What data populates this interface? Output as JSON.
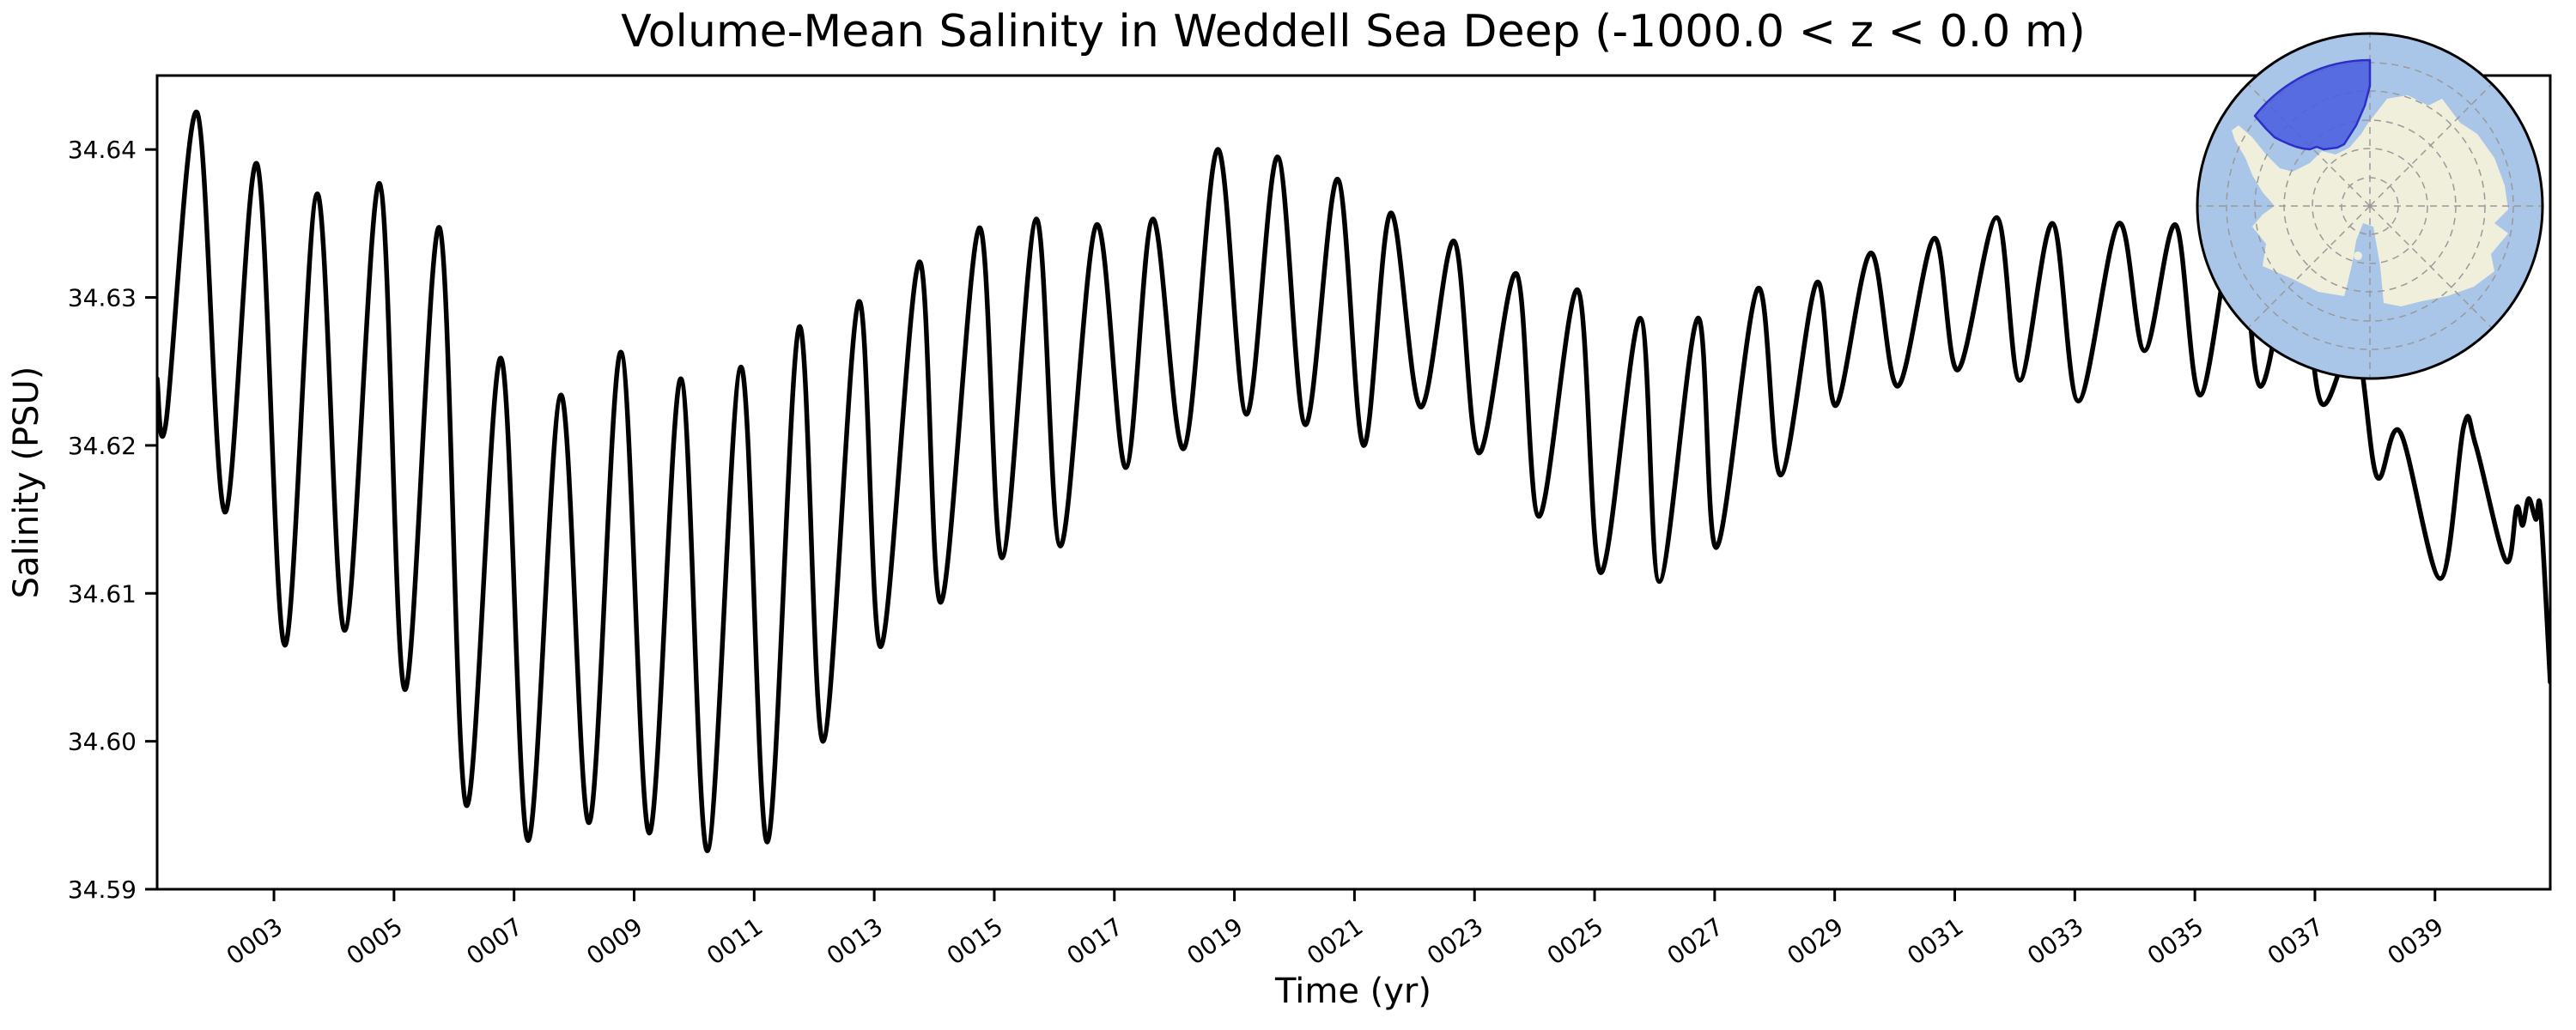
{
  "figure": {
    "title": "Volume-Mean Salinity in Weddell Sea Deep (-1000.0 < z < 0.0 m)",
    "background_color": "#ffffff",
    "frame_color": "#000000"
  },
  "chart_data": {
    "type": "line",
    "title": "Volume-Mean Salinity in Weddell Sea Deep (-1000.0 < z < 0.0 m)",
    "xlabel": "Time (yr)",
    "ylabel": "Salinity (PSU)",
    "xlim": [
      1.054,
      40.92
    ],
    "ylim": [
      34.59,
      34.645
    ],
    "grid": false,
    "legend": "none",
    "line_color": "#000000",
    "line_width": 5.5,
    "x_tick_years": [
      3,
      5,
      7,
      9,
      11,
      13,
      15,
      17,
      19,
      21,
      23,
      25,
      27,
      29,
      31,
      33,
      35,
      37,
      39
    ],
    "x_tick_labels": [
      "0003",
      "0005",
      "0007",
      "0009",
      "0011",
      "0013",
      "0015",
      "0017",
      "0019",
      "0021",
      "0023",
      "0025",
      "0027",
      "0029",
      "0031",
      "0033",
      "0035",
      "0037",
      "0039"
    ],
    "x_tick_rotation_deg": 35,
    "y_tick_values": [
      34.59,
      34.6,
      34.61,
      34.62,
      34.63,
      34.64
    ],
    "y_tick_labels": [
      "34.59",
      "34.60",
      "34.61",
      "34.62",
      "34.63",
      "34.64"
    ],
    "series": [
      {
        "name": "volume_mean_salinity",
        "units": "PSU",
        "sampling": "annual-cycle extrema control points [year, PSU]",
        "points": [
          [
            1.054,
            34.6245
          ],
          [
            1.2,
            34.6215
          ],
          [
            1.72,
            34.6425
          ],
          [
            2.18,
            34.6155
          ],
          [
            2.72,
            34.639
          ],
          [
            3.18,
            34.6065
          ],
          [
            3.72,
            34.637
          ],
          [
            4.18,
            34.6075
          ],
          [
            4.76,
            34.6377
          ],
          [
            5.18,
            34.6035
          ],
          [
            5.76,
            34.6347
          ],
          [
            6.2,
            34.5957
          ],
          [
            6.78,
            34.6259
          ],
          [
            7.23,
            34.5933
          ],
          [
            7.78,
            34.6234
          ],
          [
            8.25,
            34.5945
          ],
          [
            8.78,
            34.6263
          ],
          [
            9.25,
            34.5938
          ],
          [
            9.78,
            34.6245
          ],
          [
            10.22,
            34.5926
          ],
          [
            10.78,
            34.6253
          ],
          [
            11.22,
            34.5932
          ],
          [
            11.75,
            34.628
          ],
          [
            12.15,
            34.6
          ],
          [
            12.74,
            34.6297
          ],
          [
            13.11,
            34.6064
          ],
          [
            13.75,
            34.6324
          ],
          [
            14.11,
            34.6094
          ],
          [
            14.75,
            34.6347
          ],
          [
            15.13,
            34.6124
          ],
          [
            15.7,
            34.6353
          ],
          [
            16.1,
            34.6132
          ],
          [
            16.7,
            34.6349
          ],
          [
            17.19,
            34.6185
          ],
          [
            17.64,
            34.6353
          ],
          [
            18.16,
            34.6198
          ],
          [
            18.72,
            34.64
          ],
          [
            19.2,
            34.6221
          ],
          [
            19.72,
            34.6395
          ],
          [
            20.18,
            34.6214
          ],
          [
            20.72,
            34.638
          ],
          [
            21.15,
            34.62
          ],
          [
            21.6,
            34.6357
          ],
          [
            22.1,
            34.6226
          ],
          [
            22.66,
            34.6338
          ],
          [
            23.07,
            34.6195
          ],
          [
            23.7,
            34.6316
          ],
          [
            24.07,
            34.6152
          ],
          [
            24.72,
            34.6305
          ],
          [
            25.1,
            34.6114
          ],
          [
            25.76,
            34.6286
          ],
          [
            26.08,
            34.6108
          ],
          [
            26.72,
            34.6286
          ],
          [
            27.03,
            34.6131
          ],
          [
            27.72,
            34.6306
          ],
          [
            28.1,
            34.618
          ],
          [
            28.7,
            34.631
          ],
          [
            29.02,
            34.6227
          ],
          [
            29.6,
            34.633
          ],
          [
            30.05,
            34.624
          ],
          [
            30.66,
            34.634
          ],
          [
            31.05,
            34.6251
          ],
          [
            31.7,
            34.6354
          ],
          [
            32.08,
            34.6244
          ],
          [
            32.63,
            34.635
          ],
          [
            33.06,
            34.623
          ],
          [
            33.73,
            34.635
          ],
          [
            34.16,
            34.6264
          ],
          [
            34.68,
            34.6349
          ],
          [
            35.09,
            34.6234
          ],
          [
            35.7,
            34.6355
          ],
          [
            36.09,
            34.624
          ],
          [
            36.7,
            34.634
          ],
          [
            37.1,
            34.6229
          ],
          [
            37.67,
            34.627
          ],
          [
            38.03,
            34.6179
          ],
          [
            38.42,
            34.6209
          ],
          [
            39.09,
            34.611
          ],
          [
            39.48,
            34.6213
          ],
          [
            39.68,
            34.62
          ],
          [
            40.18,
            34.6122
          ],
          [
            40.36,
            34.6158
          ],
          [
            40.46,
            34.6146
          ],
          [
            40.56,
            34.6164
          ],
          [
            40.68,
            34.615
          ],
          [
            40.76,
            34.6156
          ],
          [
            40.92,
            34.604
          ]
        ]
      }
    ]
  },
  "inset_map": {
    "projection": "south-polar-stereographic",
    "ocean_color": "#a9c6e9",
    "land_color": "#f0efdb",
    "highlight_fill": "#4a5ce0",
    "highlight_edge": "#2b2fc8",
    "highlight_opacity": 0.85,
    "graticule_color": "#999999",
    "border_color": "#000000"
  }
}
